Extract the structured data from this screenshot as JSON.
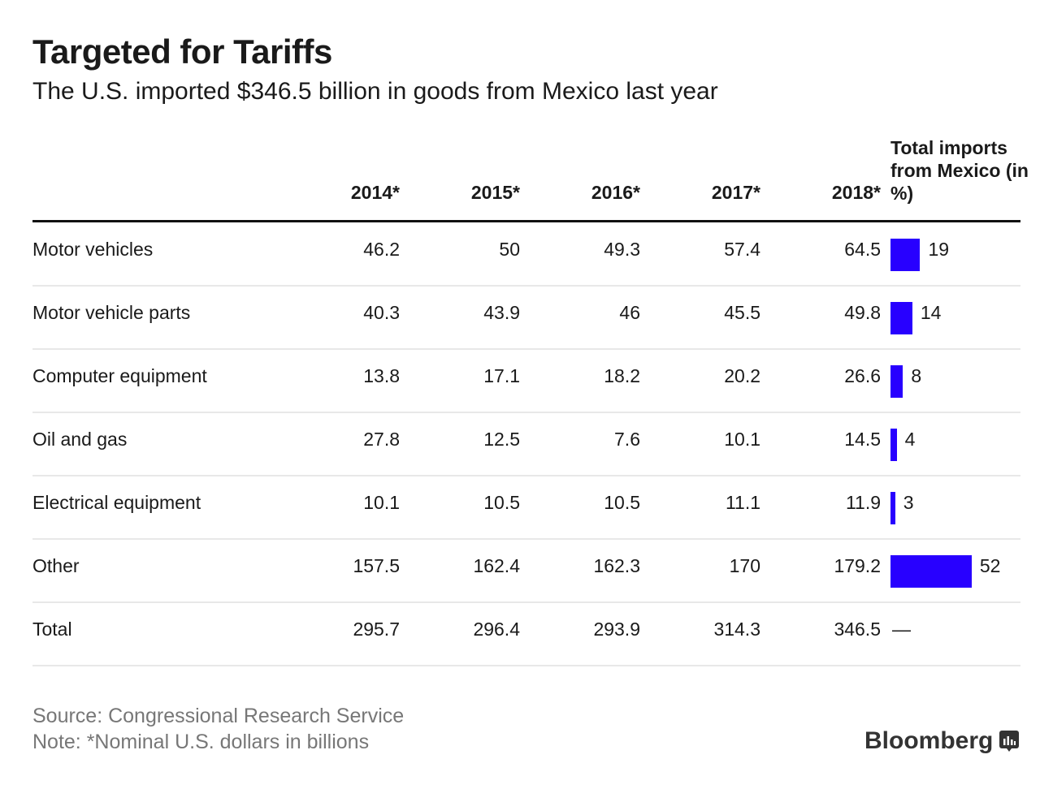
{
  "title": "Targeted for Tariffs",
  "subtitle": "The U.S. imported $346.5 billion in goods from Mexico last year",
  "source": "Source: Congressional Research Service",
  "note": "Note: *Nominal U.S. dollars in billions",
  "logo": "Bloomberg",
  "bar_color": "#2800ff",
  "chart_data": {
    "type": "table",
    "columns": [
      "2014*",
      "2015*",
      "2016*",
      "2017*",
      "2018*"
    ],
    "share_column": "Total imports from Mexico (in %)",
    "rows": [
      {
        "label": "Motor vehicles",
        "values": [
          "46.2",
          "50",
          "49.3",
          "57.4",
          "64.5"
        ],
        "share": 19
      },
      {
        "label": "Motor vehicle parts",
        "values": [
          "40.3",
          "43.9",
          "46",
          "45.5",
          "49.8"
        ],
        "share": 14
      },
      {
        "label": "Computer equipment",
        "values": [
          "13.8",
          "17.1",
          "18.2",
          "20.2",
          "26.6"
        ],
        "share": 8
      },
      {
        "label": "Oil and gas",
        "values": [
          "27.8",
          "12.5",
          "7.6",
          "10.1",
          "14.5"
        ],
        "share": 4
      },
      {
        "label": "Electrical equipment",
        "values": [
          "10.1",
          "10.5",
          "10.5",
          "11.1",
          "11.9"
        ],
        "share": 3
      },
      {
        "label": "Other",
        "values": [
          "157.5",
          "162.4",
          "162.3",
          "170",
          "179.2"
        ],
        "share": 52
      },
      {
        "label": "Total",
        "values": [
          "295.7",
          "296.4",
          "293.9",
          "314.3",
          "346.5"
        ],
        "share": "—"
      }
    ]
  }
}
